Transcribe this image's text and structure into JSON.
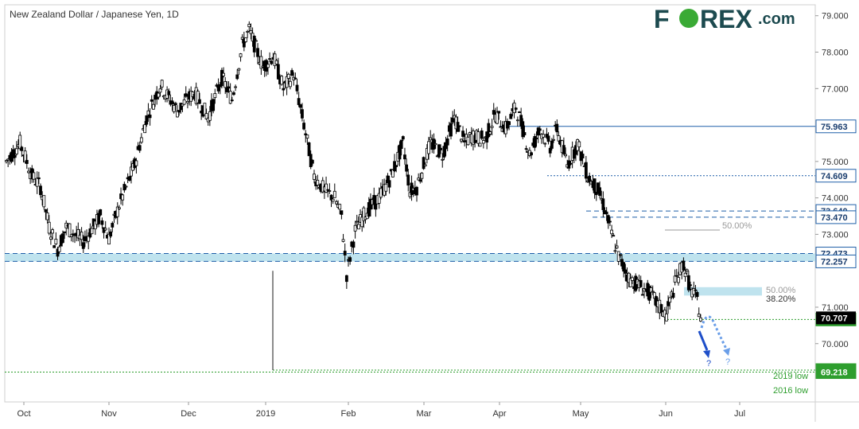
{
  "colors": {
    "brand_dark": "#1c4a4f",
    "brand_green": "#3aaa35",
    "level_blue": "#1f5fa8",
    "zone_fill": "#bfe3ee",
    "green": "#2e9e2e",
    "gray": "#9a9a9a",
    "candle": "#000000"
  },
  "logo": {
    "pre": "F",
    "mid": "REX",
    "suffix": ".com"
  },
  "chart_data": {
    "type": "candlestick",
    "title": "New Zealand Dollar / Japanese Yen, 1D",
    "ylim": [
      68.4,
      79.3
    ],
    "y_ticks": [
      "79.000",
      "78.000",
      "77.000",
      "75.000",
      "74.000",
      "73.000",
      "71.000",
      "70.000"
    ],
    "x_labels": [
      "Oct",
      "Nov",
      "Dec",
      "2019",
      "Feb",
      "Mar",
      "Apr",
      "May",
      "Jun",
      "Jul"
    ],
    "close_price": "70.707",
    "levels": [
      {
        "value": 75.963,
        "label": "75.963",
        "style": "solid",
        "color": "#1f5fa8"
      },
      {
        "value": 74.609,
        "label": "74.609",
        "style": "dotted",
        "color": "#1f5fa8"
      },
      {
        "value": 73.64,
        "label": "73.640",
        "style": "dashed",
        "color": "#1f5fa8"
      },
      {
        "value": 73.47,
        "label": "73.470",
        "style": "dashed",
        "color": "#1f5fa8"
      },
      {
        "value": 72.473,
        "label": "72.473",
        "style": "dashed",
        "color": "#1f5fa8"
      },
      {
        "value": 72.257,
        "label": "72.257",
        "style": "dashed",
        "color": "#1f5fa8"
      },
      {
        "value": 70.664,
        "label": "70.664",
        "style": "dotted",
        "color": "#2e9e2e"
      },
      {
        "value": 69.274,
        "label": "69.274",
        "style": "dotted",
        "color": "#2e9e2e"
      },
      {
        "value": 69.218,
        "label": "69.218",
        "style": "dotted",
        "color": "#2e9e2e"
      }
    ],
    "annotations": {
      "fib_50_upper": "50.00%",
      "fib_50_lower": "50.00%",
      "fib_382": "38.20%",
      "low_2019": "2019 low",
      "low_2016": "2016 low",
      "q1": "?",
      "q2": "?"
    },
    "path_points": [
      [
        0,
        75.0
      ],
      [
        8,
        75.5
      ],
      [
        15,
        74.6
      ],
      [
        20,
        74.3
      ],
      [
        25,
        73.2
      ],
      [
        30,
        72.6
      ],
      [
        35,
        73.2
      ],
      [
        45,
        72.8
      ],
      [
        55,
        73.5
      ],
      [
        60,
        72.9
      ],
      [
        66,
        73.8
      ],
      [
        75,
        74.9
      ],
      [
        82,
        76.2
      ],
      [
        90,
        77.1
      ],
      [
        100,
        76.4
      ],
      [
        110,
        76.9
      ],
      [
        118,
        76.2
      ],
      [
        126,
        77.3
      ],
      [
        132,
        76.7
      ],
      [
        138,
        78.2
      ],
      [
        142,
        78.6
      ],
      [
        150,
        77.6
      ],
      [
        156,
        77.9
      ],
      [
        162,
        77.0
      ],
      [
        168,
        77.4
      ],
      [
        174,
        76.0
      ],
      [
        180,
        74.6
      ],
      [
        186,
        74.2
      ],
      [
        192,
        74.0
      ],
      [
        196,
        73.5
      ],
      [
        199,
        71.9
      ],
      [
        204,
        73.1
      ],
      [
        210,
        73.6
      ],
      [
        218,
        74.0
      ],
      [
        225,
        74.6
      ],
      [
        232,
        75.5
      ],
      [
        236,
        74.2
      ],
      [
        240,
        74.3
      ],
      [
        248,
        75.5
      ],
      [
        255,
        75.2
      ],
      [
        262,
        76.2
      ],
      [
        268,
        75.5
      ],
      [
        272,
        75.7
      ],
      [
        280,
        75.6
      ],
      [
        286,
        76.3
      ],
      [
        292,
        75.9
      ],
      [
        298,
        76.5
      ],
      [
        302,
        75.9
      ],
      [
        306,
        75.2
      ],
      [
        312,
        75.9
      ],
      [
        318,
        75.4
      ],
      [
        322,
        75.9
      ],
      [
        328,
        74.9
      ],
      [
        334,
        75.5
      ],
      [
        340,
        74.6
      ],
      [
        346,
        74.2
      ],
      [
        350,
        73.7
      ],
      [
        354,
        73.0
      ],
      [
        358,
        72.4
      ],
      [
        364,
        71.8
      ],
      [
        370,
        71.6
      ],
      [
        376,
        71.4
      ],
      [
        382,
        71.0
      ],
      [
        386,
        70.8
      ],
      [
        392,
        71.8
      ],
      [
        396,
        72.2
      ],
      [
        400,
        71.5
      ],
      [
        404,
        71.2
      ],
      [
        406,
        70.7
      ]
    ]
  }
}
